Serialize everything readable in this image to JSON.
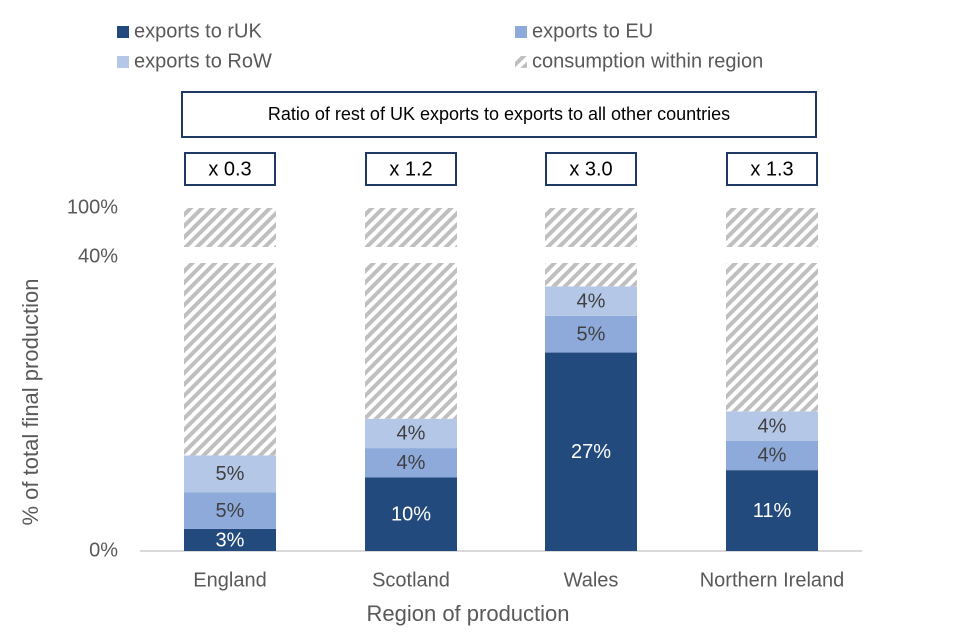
{
  "chart_data": {
    "type": "stacked_bar",
    "x_label": "Region of production",
    "y_label": "% of total final production",
    "annotation_title": "Ratio of rest of UK exports to exports to all other countries",
    "annotations": [
      "x 0.3",
      "x 1.2",
      "x 3.0",
      "x 1.3"
    ],
    "categories": [
      "England",
      "Scotland",
      "Wales",
      "Northern Ireland"
    ],
    "series": [
      {
        "name": "exports to rUK",
        "color": "#234a7c",
        "values": [
          3,
          10,
          27,
          11
        ],
        "value_labels": [
          "3%",
          "10%",
          "27%",
          "11%"
        ]
      },
      {
        "name": "exports to EU",
        "color": "#8eaadb",
        "values": [
          5,
          4,
          5,
          4
        ],
        "value_labels": [
          "5%",
          "4%",
          "5%",
          "4%"
        ]
      },
      {
        "name": "exports to RoW",
        "color": "#b4c7e7",
        "values": [
          5,
          4,
          4,
          4
        ],
        "value_labels": [
          "5%",
          "4%",
          "4%",
          "4%"
        ]
      },
      {
        "name": "consumption within region",
        "color": "#bfbfbf",
        "pattern": "hatch",
        "values": [
          87,
          82,
          64,
          81
        ]
      }
    ],
    "ylim": [
      0,
      100
    ],
    "yticks": [
      {
        "value": 0,
        "label": "0%"
      },
      {
        "value": 40,
        "label": "40%"
      },
      {
        "value": 100,
        "label": "100%"
      }
    ],
    "axis_break": 40
  }
}
